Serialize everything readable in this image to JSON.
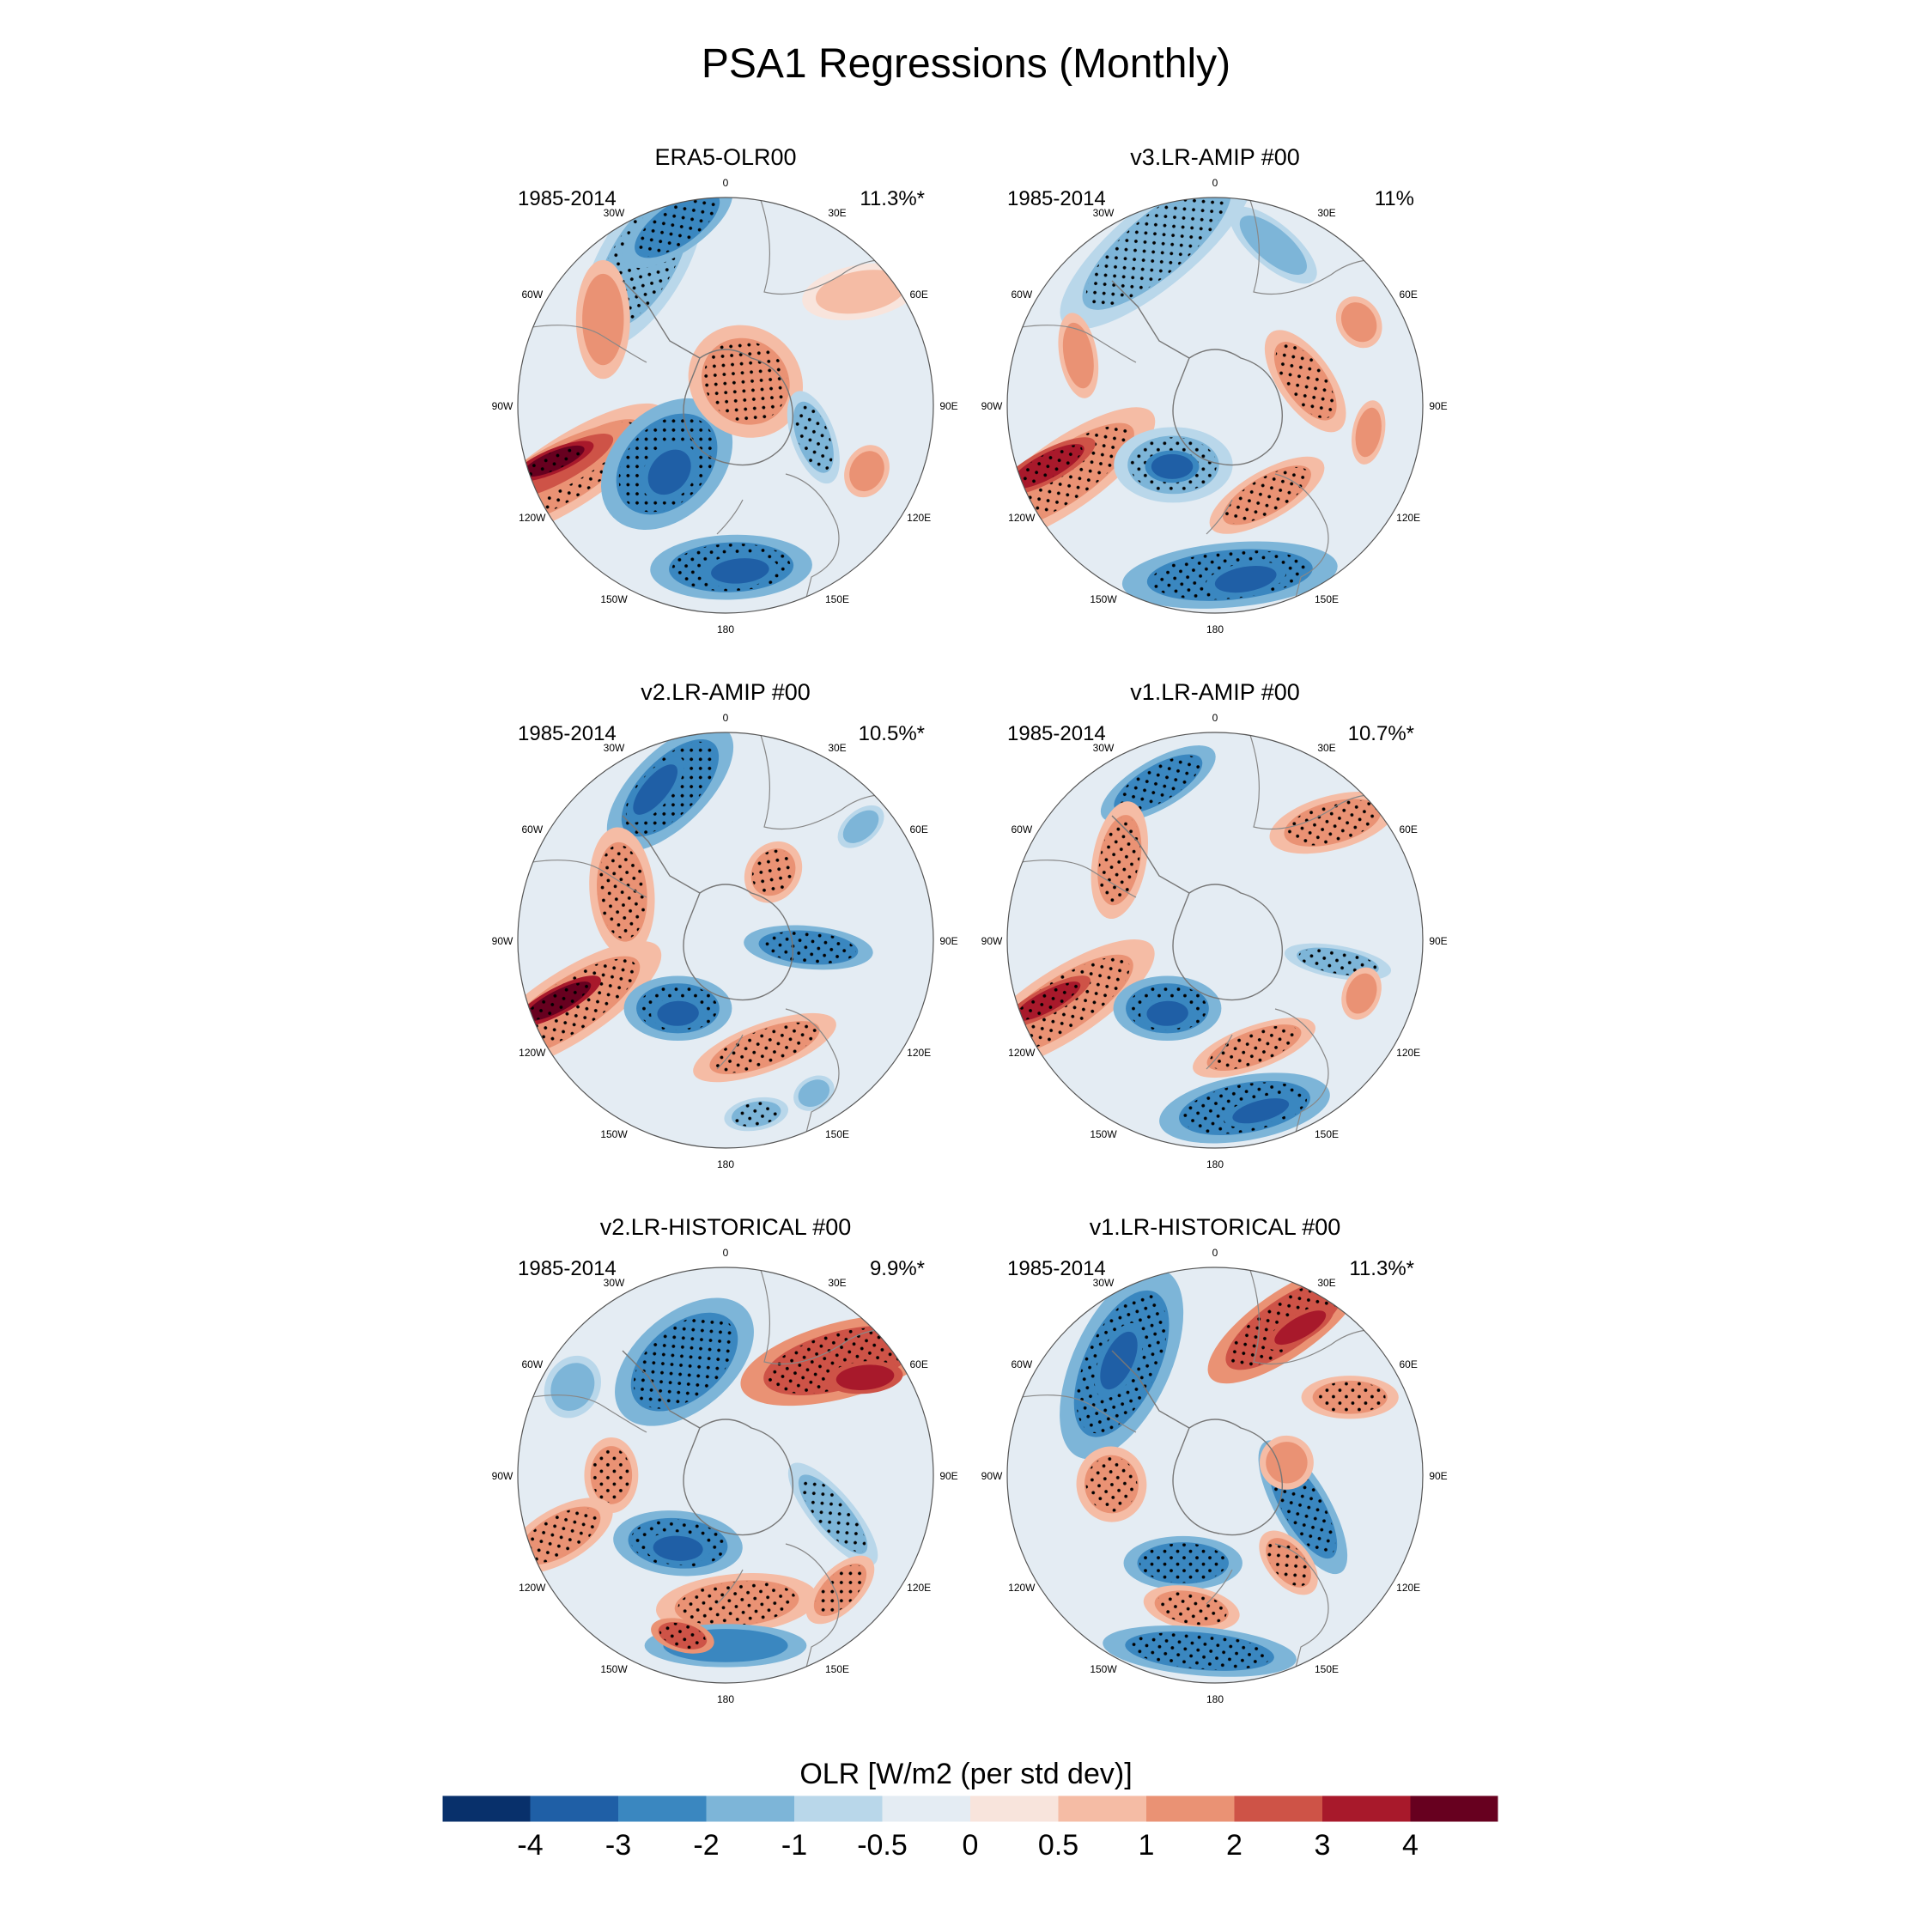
{
  "title": "PSA1 Regressions (Monthly)",
  "period": "1985-2014",
  "longitude_labels": [
    "0",
    "30E",
    "60E",
    "90E",
    "120E",
    "150E",
    "180",
    "150W",
    "120W",
    "90W",
    "60W",
    "30W"
  ],
  "panels": [
    {
      "title": "ERA5-OLR00",
      "period": "1985-2014",
      "variance": "11.3%*"
    },
    {
      "title": "v3.LR-AMIP  #00",
      "period": "1985-2014",
      "variance": "11%"
    },
    {
      "title": "v2.LR-AMIP  #00",
      "period": "1985-2014",
      "variance": "10.5%*"
    },
    {
      "title": "v1.LR-AMIP  #00",
      "period": "1985-2014",
      "variance": "10.7%*"
    },
    {
      "title": "v2.LR-HISTORICAL  #00",
      "period": "1985-2014",
      "variance": "9.9%*"
    },
    {
      "title": "v1.LR-HISTORICAL  #00",
      "period": "1985-2014",
      "variance": "11.3%*"
    }
  ],
  "colorbar": {
    "title": "OLR [W/m2 (per std dev)]",
    "tick_labels": [
      "-4",
      "-3",
      "-2",
      "-1",
      "-0.5",
      "0",
      "0.5",
      "1",
      "2",
      "3",
      "4"
    ],
    "colors": [
      "#08306b",
      "#1f5fa6",
      "#3a87c0",
      "#7db5d8",
      "#b9d7ea",
      "#e4ecf3",
      "#f8e4dc",
      "#f5bca5",
      "#ea9274",
      "#ce5347",
      "#a8192b",
      "#67001f"
    ]
  },
  "chart_data": {
    "type": "polar-contour-map",
    "projection": "south polar stereographic",
    "variable": "OLR regression on PSA1",
    "units": "W/m2 (per std dev)",
    "levels": [
      -4,
      -3,
      -2,
      -1,
      -0.5,
      0,
      0.5,
      1,
      2,
      3,
      4
    ],
    "stippling": "significant regions"
  }
}
